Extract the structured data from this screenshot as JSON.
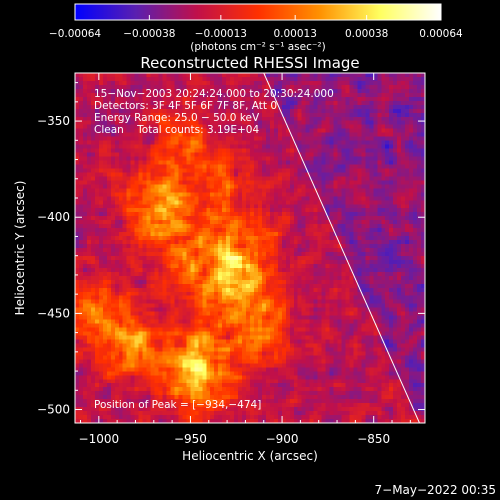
{
  "chart_data": {
    "type": "heatmap",
    "title": "Reconstructed RHESSI Image",
    "xlabel": "Heliocentric X (arcsec)",
    "ylabel": "Heliocentric Y (arcsec)",
    "xlim": [
      -1013,
      -822
    ],
    "ylim": [
      -507,
      -325
    ],
    "x_ticks": [
      -1000,
      -950,
      -900,
      -850
    ],
    "x_tick_labels": [
      "−1000",
      "−950",
      "−900",
      "−850"
    ],
    "y_ticks": [
      -350,
      -400,
      -450,
      -500
    ],
    "y_tick_labels": [
      "−350",
      "−400",
      "−450",
      "−500"
    ],
    "colorbar": {
      "range": [
        -0.00064,
        0.00064
      ],
      "ticks": [
        -0.00064,
        -0.00038,
        -0.00013,
        0.00013,
        0.00038,
        0.00064
      ],
      "tick_labels": [
        "−0.00064",
        "−0.00038",
        "−0.00013",
        "0.00013",
        "0.00038",
        "0.00064"
      ],
      "units": "(photons cm⁻² s⁻¹ asec⁻²)",
      "colors": [
        "#0000ff",
        "#5a1fb0",
        "#c0104a",
        "#ff3000",
        "#ff9000",
        "#ffff60",
        "#ffffff"
      ]
    },
    "annotations": [
      "15−Nov−2003 20:24:24.000 to 20:30:24.000",
      "Detectors: 3F 4F 5F 6F 7F 8F, Att 0",
      "Energy Range: 25.0 − 50.0 keV",
      "Clean    Total counts: 3.19E+04"
    ],
    "peak_label": "Position of Peak = [−934,−474]",
    "peak": [
      -934,
      -474
    ],
    "limb_line": [
      [
        -910,
        -325
      ],
      [
        -825,
        -507
      ]
    ],
    "sources": [
      {
        "x": -945,
        "y": -480,
        "amp": 0.00062,
        "r": 13
      },
      {
        "x": -930,
        "y": -427,
        "amp": 0.00055,
        "r": 18
      },
      {
        "x": -965,
        "y": -395,
        "amp": 0.00045,
        "r": 14
      },
      {
        "x": -1000,
        "y": -450,
        "amp": 0.00032,
        "r": 12
      },
      {
        "x": -980,
        "y": -468,
        "amp": 0.0004,
        "r": 12
      },
      {
        "x": -955,
        "y": -360,
        "amp": 0.0003,
        "r": 10
      },
      {
        "x": -912,
        "y": -460,
        "amp": 0.0003,
        "r": 12
      },
      {
        "x": -930,
        "y": -380,
        "amp": 0.00025,
        "r": 10
      }
    ],
    "timestamp": "7−May−2022 00:35"
  }
}
